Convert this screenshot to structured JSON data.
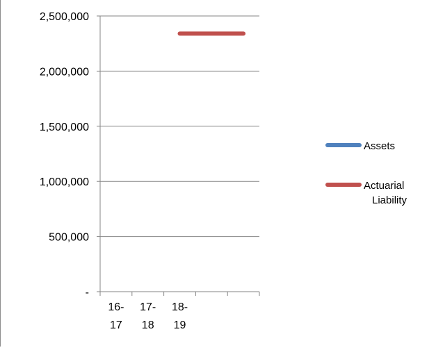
{
  "chart_data": {
    "type": "line",
    "categories": [
      [
        "16-",
        "17"
      ],
      [
        "17-",
        "18"
      ],
      [
        "18-",
        "19"
      ],
      [
        "",
        ""
      ],
      [
        "",
        ""
      ]
    ],
    "ylim": [
      0,
      2500000
    ],
    "yticks": [
      0,
      500000,
      1000000,
      1500000,
      2000000,
      2500000
    ],
    "ytick_labels": [
      "-",
      "500,000",
      "1,000,000",
      "1,500,000",
      "2,000,000",
      "2,500,000"
    ],
    "grid": true,
    "legend_position": "right",
    "series": [
      {
        "name": "Assets",
        "color": "#4f81bd",
        "values": [
          null,
          null,
          null,
          null,
          null
        ],
        "legend_lines": [
          "Assets"
        ]
      },
      {
        "name": "Actuarial Liability",
        "color": "#c0504d",
        "values": [
          null,
          null,
          2340000,
          2340000,
          2340000
        ],
        "legend_lines": [
          "Actuarial",
          "Liability"
        ]
      }
    ]
  }
}
